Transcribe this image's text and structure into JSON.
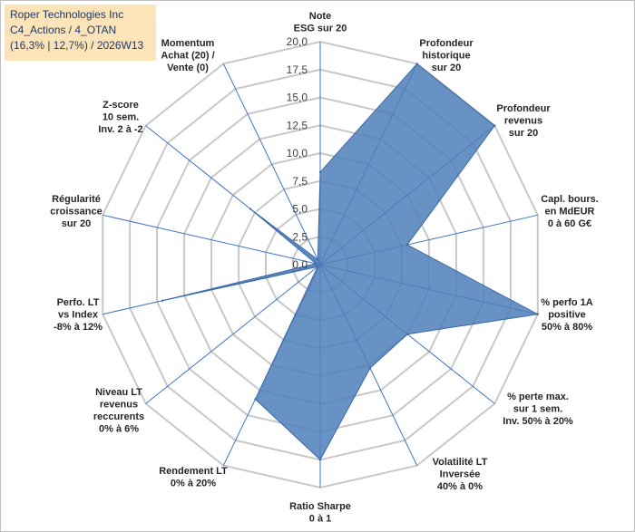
{
  "title_box": {
    "line1": "Roper Technologies Inc",
    "line2": "C4_Actions / 4_OTAN",
    "line3": "(16,3% | 12,7%) / 2026W13"
  },
  "chart_data": {
    "type": "radar",
    "title": "Roper Technologies Inc C4_Actions / 4_OTAN (16,3% | 12,7%) / 2026W13",
    "rmin": 0,
    "rmax": 20,
    "ticks": [
      "0,0",
      "2,5",
      "5,0",
      "7,5",
      "10,0",
      "12,5",
      "15,0",
      "17,5",
      "20,0"
    ],
    "tick_values": [
      0,
      2.5,
      5,
      7.5,
      10,
      12.5,
      15,
      17.5,
      20
    ],
    "categories": [
      [
        "Note",
        "ESG sur 20"
      ],
      [
        "Profondeur",
        "historique",
        "sur 20"
      ],
      [
        "Profondeur",
        "revenus",
        "sur 20"
      ],
      [
        "Capl. bours.",
        "en MdEUR",
        "0 à 60 G€"
      ],
      [
        "% perfo 1A",
        "positive",
        "50% à 80%"
      ],
      [
        "% perte max.",
        "sur 1 sem.",
        "Inv. 50% à 20%"
      ],
      [
        "Volatilité LT",
        "Inversée",
        "40% à 0%"
      ],
      [
        "Ratio Sharpe",
        "0 à 1"
      ],
      [
        "Rendement LT",
        "0% à 20%"
      ],
      [
        "Niveau LT",
        "revenus",
        "reccurents",
        "0% à 6%"
      ],
      [
        "Perfo. LT",
        "vs Index",
        "-8% à 12%"
      ],
      [
        "Régularité",
        "croissance",
        "sur 20"
      ],
      [
        "Z-score",
        "10 sem.",
        "Inv. 2 à -2"
      ],
      [
        "Momentum",
        "Achat (20) /",
        "Vente (0)"
      ]
    ],
    "series": [
      {
        "name": "Roper Technologies Inc",
        "values": [
          8.3,
          20.0,
          20.0,
          8.0,
          20.0,
          10.0,
          10.3,
          17.5,
          13.4,
          0.3,
          14.5,
          0.4,
          8.0,
          0.5
        ],
        "color": "#4f7fba"
      }
    ]
  }
}
